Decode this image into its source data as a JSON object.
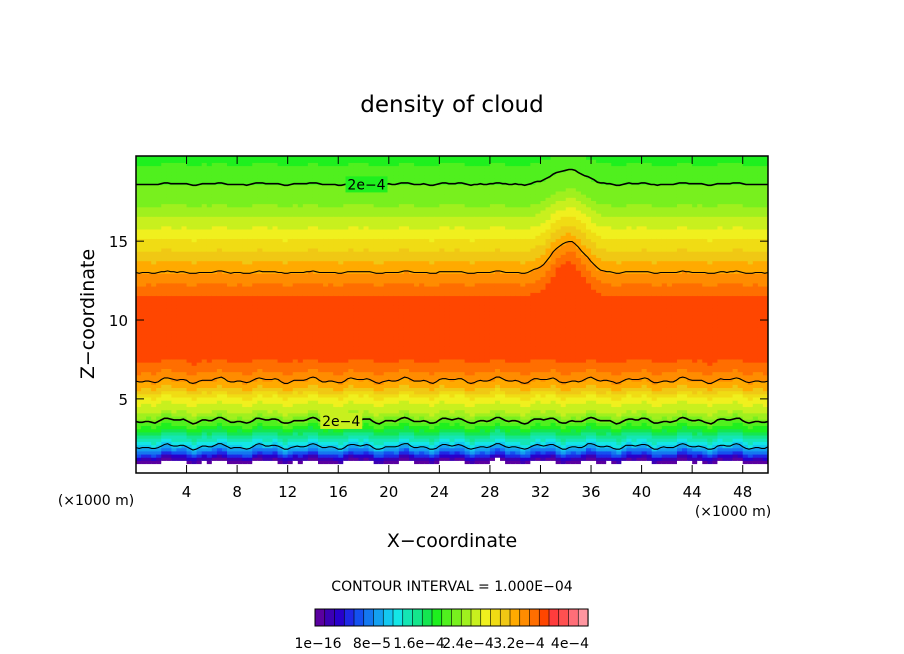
{
  "chart_data": {
    "type": "heatmap",
    "title": "density of cloud",
    "xlabel": "X−coordinate",
    "ylabel": "Z−coordinate",
    "x_unit_left": "(×1000 m)",
    "x_unit_right": "(×1000 m)",
    "xlim": [
      0,
      50
    ],
    "ylim": [
      0.3,
      20.4
    ],
    "x_ticks": [
      "4",
      "8",
      "12",
      "16",
      "20",
      "24",
      "28",
      "32",
      "36",
      "40",
      "44",
      "48"
    ],
    "x_tick_values": [
      4,
      8,
      12,
      16,
      20,
      24,
      28,
      32,
      36,
      40,
      44,
      48
    ],
    "y_ticks": [
      "5",
      "10",
      "15"
    ],
    "y_tick_values": [
      5,
      10,
      15
    ],
    "contour_labels": [
      "2e−4",
      "2e−4"
    ],
    "contour_label_positions": [
      {
        "x": 18,
        "z": 18.6
      },
      {
        "x": 16,
        "z": 3.6
      }
    ],
    "contour_interval_text": "CONTOUR INTERVAL = 1.000E−04",
    "colorbar_labels": [
      "1e−16",
      "8e−5",
      "1.6e−4",
      "2.4e−4",
      "3.2e−4",
      "4e−4"
    ],
    "colorbar_range": [
      0,
      0.0004
    ],
    "colors": [
      "#5a00a0",
      "#3c00b4",
      "#2800cc",
      "#1e28e6",
      "#1450f0",
      "#1478f0",
      "#14a0f0",
      "#14c8f0",
      "#14e6e6",
      "#14e6b4",
      "#14e68c",
      "#14e650",
      "#1ef01e",
      "#50f01e",
      "#78f01e",
      "#a0f01e",
      "#c8f01e",
      "#f0f01e",
      "#f0dc14",
      "#f0c814",
      "#ffaa00",
      "#ff8c00",
      "#ff6e00",
      "#ff4600",
      "#ff3c3c",
      "#ff5050",
      "#ff6e78",
      "#ff96a0"
    ],
    "vertical_profile": {
      "z": [
        0.3,
        1.0,
        1.3,
        1.7,
        2.2,
        2.7,
        3.2,
        3.6,
        4.2,
        5.0,
        5.8,
        6.5,
        7.5,
        8.5,
        10,
        11.5,
        12.5,
        13.5,
        14.5,
        15.5,
        16.5,
        17.5,
        18.6,
        19.5,
        20.4
      ],
      "density": [
        0.0,
        0.0,
        3e-05,
        8e-05,
        0.00012,
        0.00015,
        0.00018,
        0.0002,
        0.00023,
        0.00025,
        0.00029,
        0.00031,
        0.00033,
        0.00034,
        0.00034,
        0.00033,
        0.00031,
        0.00029,
        0.00027,
        0.00025,
        0.00023,
        0.00021,
        0.0002,
        0.00019,
        0.00018
      ]
    }
  }
}
